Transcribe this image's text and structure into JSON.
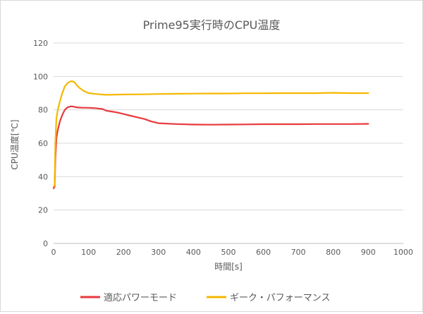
{
  "chart_data": {
    "type": "line",
    "title": "Prime95実行時のCPU温度",
    "xlabel": "時間[s]",
    "ylabel": "CPU温度[℃]",
    "xlim": [
      0,
      1000
    ],
    "ylim": [
      0,
      120
    ],
    "xticks": [
      0,
      100,
      200,
      300,
      400,
      500,
      600,
      700,
      800,
      900,
      1000
    ],
    "yticks": [
      0,
      20,
      40,
      60,
      80,
      100,
      120
    ],
    "grid": "horizontal",
    "legend_position": "bottom",
    "series": [
      {
        "name": "適応パワーモード",
        "color": "#e8393d",
        "x": [
          0,
          3,
          5,
          8,
          12,
          18,
          25,
          32,
          40,
          48,
          55,
          65,
          80,
          100,
          120,
          140,
          150,
          165,
          180,
          200,
          220,
          240,
          260,
          280,
          300,
          350,
          400,
          450,
          500,
          550,
          600,
          650,
          700,
          750,
          800,
          850,
          900
        ],
        "y": [
          33,
          34,
          50,
          63,
          68,
          73,
          77,
          80,
          81.5,
          82,
          82,
          81.5,
          81.3,
          81.2,
          81,
          80.5,
          79.5,
          79,
          78.5,
          77.5,
          76.5,
          75.5,
          74.5,
          73,
          72,
          71.5,
          71.2,
          71.1,
          71.2,
          71.3,
          71.4,
          71.4,
          71.4,
          71.5,
          71.5,
          71.5,
          71.6
        ]
      },
      {
        "name": "ギーク・パフォーマンス",
        "color": "#f5b800",
        "x": [
          0,
          3,
          5,
          8,
          12,
          18,
          25,
          32,
          40,
          48,
          55,
          60,
          65,
          75,
          85,
          100,
          120,
          150,
          200,
          250,
          300,
          350,
          400,
          450,
          500,
          550,
          600,
          650,
          700,
          750,
          800,
          850,
          900
        ],
        "y": [
          34,
          35,
          60,
          75,
          80,
          85,
          90,
          94,
          96,
          97,
          97,
          96.5,
          95,
          93,
          91.5,
          90,
          89.5,
          89,
          89.2,
          89.3,
          89.5,
          89.6,
          89.7,
          89.8,
          89.8,
          89.9,
          89.9,
          90,
          90,
          90,
          90.2,
          90,
          90
        ]
      }
    ]
  }
}
